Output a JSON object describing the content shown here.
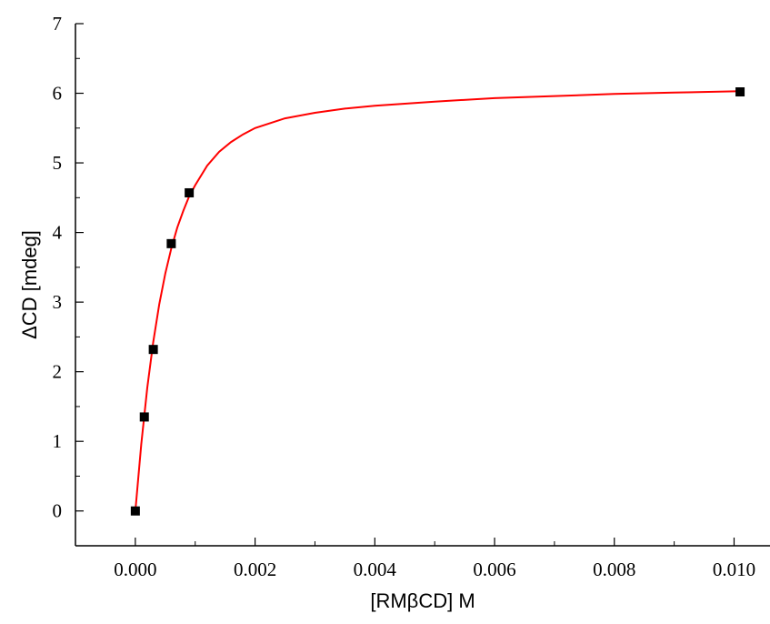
{
  "chart_data": {
    "type": "scatter",
    "xlabel": "[RMβCD] M",
    "ylabel": "ΔCD [mdeg]",
    "xlim": [
      -0.001,
      0.0106
    ],
    "ylim": [
      -0.5,
      7
    ],
    "xticks": [
      0.0,
      0.002,
      0.004,
      0.006,
      0.008,
      0.01
    ],
    "xtick_labels": [
      "0.000",
      "0.002",
      "0.004",
      "0.006",
      "0.008",
      "0.010"
    ],
    "yticks": [
      0,
      1,
      2,
      3,
      4,
      5,
      6,
      7
    ],
    "ytick_labels": [
      "0",
      "1",
      "2",
      "3",
      "4",
      "5",
      "6",
      "7"
    ],
    "grid": false,
    "series": [
      {
        "type": "scatter",
        "marker": "square",
        "color": "#000000",
        "x": [
          0.0,
          0.00015,
          0.0003,
          0.0006,
          0.0009,
          0.0101
        ],
        "y": [
          0.0,
          1.35,
          2.32,
          3.84,
          4.57,
          6.02
        ]
      },
      {
        "type": "line",
        "color": "#ff0000",
        "x": [
          0.0,
          0.0001,
          0.0002,
          0.0003,
          0.0004,
          0.0005,
          0.0006,
          0.0007,
          0.0008,
          0.0009,
          0.001,
          0.0012,
          0.0014,
          0.0016,
          0.0018,
          0.002,
          0.0025,
          0.003,
          0.0035,
          0.004,
          0.005,
          0.006,
          0.007,
          0.008,
          0.009,
          0.0101
        ],
        "y": [
          0.0,
          0.96,
          1.77,
          2.43,
          2.97,
          3.41,
          3.77,
          4.07,
          4.31,
          4.52,
          4.68,
          4.96,
          5.16,
          5.3,
          5.41,
          5.5,
          5.64,
          5.72,
          5.78,
          5.82,
          5.88,
          5.93,
          5.96,
          5.99,
          6.01,
          6.03
        ]
      }
    ]
  }
}
